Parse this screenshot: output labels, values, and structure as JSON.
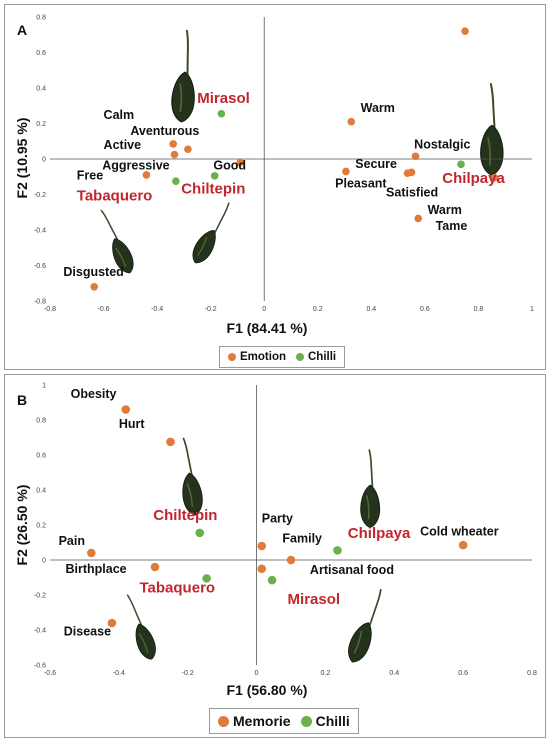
{
  "chart_data": [
    {
      "type": "scatter",
      "panel": "A",
      "xlabel": "F1 (84.41 %)",
      "ylabel": "F2 (10.95 %)",
      "xlim": [
        -0.8,
        1
      ],
      "ylim": [
        -0.8,
        0.8
      ],
      "xticks": [
        "-0.8",
        "-0.6",
        "-0.4",
        "-0.2",
        "0",
        "0.2",
        "0.4",
        "0.6",
        "0.8",
        "1"
      ],
      "yticks": [
        "-0.8",
        "-0.6",
        "-0.4",
        "-0.2",
        "0",
        "0.2",
        "0.4",
        "0.6",
        "0.8"
      ],
      "legend": {
        "position": "bottom-center",
        "entries": [
          "Emotion",
          "Chilli"
        ]
      },
      "colors": {
        "Emotion": "#e07b39",
        "Chilli": "#6ab04c",
        "chili_label": "#c0272d"
      },
      "series": [
        {
          "name": "Emotion",
          "points": [
            {
              "x": -0.34,
              "y": 0.085
            },
            {
              "x": -0.335,
              "y": 0.025
            },
            {
              "x": -0.285,
              "y": 0.055
            },
            {
              "x": -0.44,
              "y": -0.09
            },
            {
              "x": -0.09,
              "y": -0.02
            },
            {
              "x": -0.635,
              "y": -0.72
            },
            {
              "x": 0.325,
              "y": 0.21
            },
            {
              "x": 0.305,
              "y": -0.07
            },
            {
              "x": 0.535,
              "y": -0.08
            },
            {
              "x": 0.55,
              "y": -0.075
            },
            {
              "x": 0.565,
              "y": 0.015
            },
            {
              "x": 0.575,
              "y": -0.335
            },
            {
              "x": 0.75,
              "y": 0.72
            },
            {
              "x": 0.86,
              "y": -0.105
            }
          ]
        },
        {
          "name": "Chilli",
          "points": [
            {
              "x": -0.16,
              "y": 0.255
            },
            {
              "x": -0.33,
              "y": -0.125
            },
            {
              "x": -0.185,
              "y": -0.095
            },
            {
              "x": 0.735,
              "y": -0.03
            }
          ]
        }
      ],
      "labels": [
        {
          "text": "Calm",
          "x": -0.6,
          "y": 0.225,
          "kind": "emotion"
        },
        {
          "text": "Aventurous",
          "x": -0.5,
          "y": 0.135,
          "kind": "emotion"
        },
        {
          "text": "Active",
          "x": -0.6,
          "y": 0.055,
          "kind": "emotion"
        },
        {
          "text": "Aggressive",
          "x": -0.605,
          "y": -0.06,
          "kind": "emotion"
        },
        {
          "text": "Free",
          "x": -0.7,
          "y": -0.115,
          "kind": "emotion"
        },
        {
          "text": "Good",
          "x": -0.19,
          "y": -0.06,
          "kind": "emotion"
        },
        {
          "text": "Disgusted",
          "x": -0.75,
          "y": -0.66,
          "kind": "emotion"
        },
        {
          "text": "Warm",
          "x": 0.36,
          "y": 0.265,
          "kind": "emotion"
        },
        {
          "text": "Nostalgic",
          "x": 0.56,
          "y": 0.06,
          "kind": "emotion"
        },
        {
          "text": "Secure",
          "x": 0.34,
          "y": -0.05,
          "kind": "emotion"
        },
        {
          "text": "Pleasant",
          "x": 0.265,
          "y": -0.16,
          "kind": "emotion"
        },
        {
          "text": "Satisfied",
          "x": 0.455,
          "y": -0.21,
          "kind": "emotion"
        },
        {
          "text": "Warm",
          "x": 0.61,
          "y": -0.31,
          "kind": "emotion"
        },
        {
          "text": "Tame",
          "x": 0.64,
          "y": -0.4,
          "kind": "emotion"
        },
        {
          "text": "Mirasol",
          "x": -0.25,
          "y": 0.315,
          "kind": "chilli"
        },
        {
          "text": "Chiltepin",
          "x": -0.31,
          "y": -0.195,
          "kind": "chilli"
        },
        {
          "text": "Tabaquero",
          "x": -0.7,
          "y": -0.235,
          "kind": "chilli"
        },
        {
          "text": "Chilpaya",
          "x": 0.665,
          "y": -0.135,
          "kind": "chilli"
        }
      ]
    },
    {
      "type": "scatter",
      "panel": "B",
      "xlabel": "F1 (56.80 %)",
      "ylabel": "F2 (26.50 %)",
      "xlim": [
        -0.6,
        0.8
      ],
      "ylim": [
        -0.6,
        1
      ],
      "xticks": [
        "-0.6",
        "-0.4",
        "-0.2",
        "0",
        "0.2",
        "0.4",
        "0.6",
        "0.8"
      ],
      "yticks": [
        "-0.6",
        "-0.4",
        "-0.2",
        "0",
        "0.2",
        "0.4",
        "0.6",
        "0.8",
        "1"
      ],
      "legend": {
        "position": "bottom-center",
        "entries": [
          "Memorie",
          "Chilli"
        ]
      },
      "colors": {
        "Memorie": "#e07b39",
        "Chilli": "#6ab04c",
        "chili_label": "#c0272d"
      },
      "series": [
        {
          "name": "Memorie",
          "points": [
            {
              "x": -0.38,
              "y": 0.86
            },
            {
              "x": -0.25,
              "y": 0.675
            },
            {
              "x": -0.48,
              "y": 0.04
            },
            {
              "x": -0.295,
              "y": -0.04
            },
            {
              "x": -0.42,
              "y": -0.36
            },
            {
              "x": 0.015,
              "y": 0.08
            },
            {
              "x": 0.015,
              "y": -0.05
            },
            {
              "x": 0.1,
              "y": 0.0
            },
            {
              "x": 0.6,
              "y": 0.085
            }
          ]
        },
        {
          "name": "Chilli",
          "points": [
            {
              "x": -0.165,
              "y": 0.155
            },
            {
              "x": -0.145,
              "y": -0.105
            },
            {
              "x": 0.045,
              "y": -0.115
            },
            {
              "x": 0.235,
              "y": 0.055
            }
          ]
        }
      ],
      "labels": [
        {
          "text": "Obesity",
          "x": -0.54,
          "y": 0.925,
          "kind": "memorie"
        },
        {
          "text": "Hurt",
          "x": -0.4,
          "y": 0.755,
          "kind": "memorie"
        },
        {
          "text": "Pain",
          "x": -0.575,
          "y": 0.085,
          "kind": "memorie"
        },
        {
          "text": "Birthplace",
          "x": -0.555,
          "y": -0.075,
          "kind": "memorie"
        },
        {
          "text": "Disease",
          "x": -0.56,
          "y": -0.43,
          "kind": "memorie"
        },
        {
          "text": "Party",
          "x": 0.015,
          "y": 0.215,
          "kind": "memorie"
        },
        {
          "text": "Family",
          "x": 0.075,
          "y": 0.1,
          "kind": "memorie"
        },
        {
          "text": "Artisanal food",
          "x": 0.155,
          "y": -0.08,
          "kind": "memorie"
        },
        {
          "text": "Cold wheater",
          "x": 0.475,
          "y": 0.14,
          "kind": "memorie"
        },
        {
          "text": "Chiltepin",
          "x": -0.3,
          "y": 0.23,
          "kind": "chilli"
        },
        {
          "text": "Tabaquero",
          "x": -0.34,
          "y": -0.185,
          "kind": "chilli"
        },
        {
          "text": "Chilpaya",
          "x": 0.265,
          "y": 0.125,
          "kind": "chilli"
        },
        {
          "text": "Mirasol",
          "x": 0.09,
          "y": -0.25,
          "kind": "chilli"
        }
      ]
    }
  ]
}
